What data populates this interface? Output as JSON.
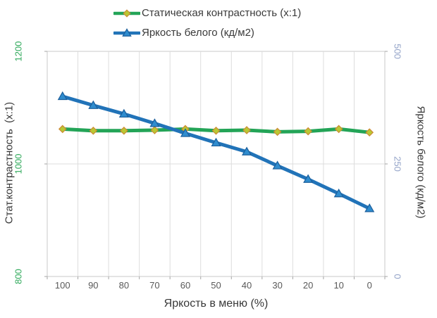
{
  "legend": {
    "items": [
      {
        "label": "Статическая контрастность (x:1)",
        "marker": "diamond"
      },
      {
        "label": "Яркость белого (кд/м2)",
        "marker": "triangle"
      }
    ]
  },
  "chart_data": {
    "type": "line",
    "x": [
      100,
      90,
      80,
      70,
      60,
      50,
      40,
      30,
      20,
      10,
      0
    ],
    "xlabel": "Яркость в меню (%)",
    "x_tick_color": "#595959",
    "grid": true,
    "legend_position": "top",
    "left_axis": {
      "title": "Стат.контрастность  (x:1)",
      "ticks": [
        800,
        1000,
        1200
      ],
      "range": [
        800,
        1200
      ],
      "tick_color": "#31AA5C"
    },
    "right_axis": {
      "title": "Яркость белого (кд/м2)",
      "ticks": [
        0,
        250,
        500
      ],
      "range": [
        0,
        500
      ],
      "tick_color": "#93A3C8"
    },
    "series": [
      {
        "name": "Статическая контрастность (x:1)",
        "axis": "left",
        "values": [
          1062,
          1059,
          1059,
          1060,
          1062,
          1059,
          1060,
          1057,
          1058,
          1062,
          1056
        ],
        "color": "#23A457",
        "marker": "diamond",
        "marker_fill": "#B9C832",
        "marker_stroke": "#CC8A33"
      },
      {
        "name": "Яркость белого (кд/м2)",
        "axis": "right",
        "values": [
          400,
          380,
          361,
          340,
          318,
          297,
          277,
          246,
          216,
          184,
          151
        ],
        "color": "#2173B8",
        "marker": "triangle",
        "marker_fill": "#2F8CCE",
        "marker_stroke": "#1B5E9B"
      }
    ],
    "colors": {
      "gridline": "#DDDDDD",
      "plot_border": "#C8C8C8",
      "tick_mark": "#A6A6A6"
    }
  }
}
